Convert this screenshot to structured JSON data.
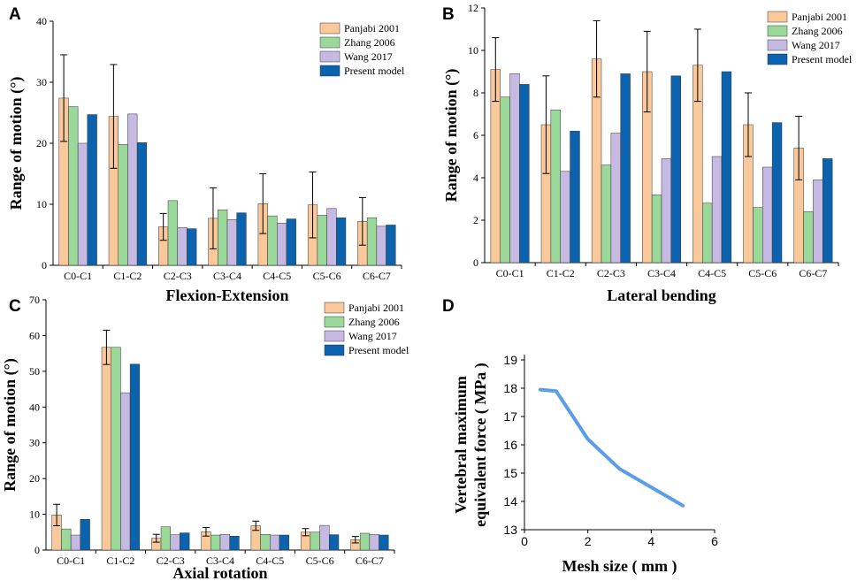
{
  "colors": {
    "panjabi": "#f9c89b",
    "zhang": "#9ad99a",
    "wang": "#c6b9e2",
    "present": "#0c63ad",
    "line": "#5b9ee8"
  },
  "chart_data": [
    {
      "panel": "A",
      "type": "bar",
      "xlabel": "Flexion-Extension",
      "ylabel": "Range of motion (°)",
      "ylim": [
        0,
        40
      ],
      "yticks": [
        0,
        10,
        20,
        30,
        40
      ],
      "categories": [
        "C0-C1",
        "C1-C2",
        "C2-C3",
        "C3-C4",
        "C4-C5",
        "C5-C6",
        "C6-C7"
      ],
      "legend_position": "top-right",
      "series": [
        {
          "name": "Panjabi 2001",
          "color_key": "panjabi",
          "values": [
            27.4,
            24.4,
            6.3,
            7.7,
            10.1,
            9.9,
            7.2
          ],
          "err": [
            7.1,
            8.5,
            2.2,
            5.0,
            4.9,
            5.4,
            3.9
          ]
        },
        {
          "name": "Zhang 2006",
          "color_key": "zhang",
          "values": [
            26.0,
            19.8,
            10.6,
            9.1,
            8.1,
            8.2,
            7.8
          ]
        },
        {
          "name": "Wang 2017",
          "color_key": "wang",
          "values": [
            20.0,
            24.8,
            6.2,
            7.5,
            6.9,
            9.3,
            6.4
          ]
        },
        {
          "name": "Present model",
          "color_key": "present",
          "values": [
            24.7,
            20.1,
            6.0,
            8.6,
            7.6,
            7.8,
            6.6
          ]
        }
      ]
    },
    {
      "panel": "B",
      "type": "bar",
      "xlabel": "Lateral bending",
      "ylabel": "Range of motion (°)",
      "ylim": [
        0,
        12
      ],
      "yticks": [
        0,
        2,
        4,
        6,
        8,
        10,
        12
      ],
      "categories": [
        "C0-C1",
        "C1-C2",
        "C2-C3",
        "C3-C4",
        "C4-C5",
        "C5-C6",
        "C6-C7"
      ],
      "legend_position": "top-right",
      "series": [
        {
          "name": "Panjabi 2001",
          "color_key": "panjabi",
          "values": [
            9.1,
            6.5,
            9.6,
            9.0,
            9.3,
            6.5,
            5.4
          ],
          "err": [
            1.5,
            2.3,
            1.8,
            1.9,
            1.7,
            1.5,
            1.5
          ]
        },
        {
          "name": "Zhang 2006",
          "color_key": "zhang",
          "values": [
            7.8,
            7.2,
            4.6,
            3.2,
            2.8,
            2.6,
            2.4
          ]
        },
        {
          "name": "Wang 2017",
          "color_key": "wang",
          "values": [
            8.9,
            4.3,
            6.1,
            4.9,
            5.0,
            4.5,
            3.9
          ]
        },
        {
          "name": "Present model",
          "color_key": "present",
          "values": [
            8.4,
            6.2,
            8.9,
            8.8,
            9.0,
            6.6,
            4.9
          ]
        }
      ]
    },
    {
      "panel": "C",
      "type": "bar",
      "xlabel": "Axial rotation",
      "ylabel": "Range of motion (°)",
      "ylim": [
        0,
        70
      ],
      "yticks": [
        0,
        10,
        20,
        30,
        40,
        50,
        60,
        70
      ],
      "categories": [
        "C0-C1",
        "C1-C2",
        "C2-C3",
        "C3-C4",
        "C4-C5",
        "C5-C6",
        "C6-C7"
      ],
      "legend_position": "top-right",
      "series": [
        {
          "name": "Panjabi 2001",
          "color_key": "panjabi",
          "values": [
            9.8,
            56.7,
            3.3,
            5.1,
            6.8,
            5.0,
            2.9
          ],
          "err": [
            3.0,
            4.8,
            1.1,
            1.2,
            1.3,
            1.0,
            0.9
          ]
        },
        {
          "name": "Zhang 2006",
          "color_key": "zhang",
          "values": [
            5.9,
            56.7,
            6.5,
            4.2,
            4.4,
            5.0,
            4.7
          ]
        },
        {
          "name": "Wang 2017",
          "color_key": "wang",
          "values": [
            4.2,
            44.0,
            4.3,
            4.4,
            4.2,
            6.9,
            4.4
          ]
        },
        {
          "name": "Present model",
          "color_key": "present",
          "values": [
            8.6,
            52.0,
            4.8,
            3.9,
            4.2,
            4.3,
            4.2
          ]
        }
      ]
    },
    {
      "panel": "D",
      "type": "line",
      "xlabel": "Mesh size ( mm )",
      "ylabel_line1": "Vertebral maximum",
      "ylabel_line2": "equivalent force ( MPa )",
      "xlim": [
        0,
        6
      ],
      "ylim": [
        13,
        19
      ],
      "xticks": [
        0,
        2,
        4,
        6
      ],
      "yticks": [
        13,
        14,
        15,
        16,
        17,
        18,
        19
      ],
      "x": [
        0.5,
        1.0,
        2.0,
        3.0,
        4.0,
        5.0
      ],
      "y": [
        17.95,
        17.9,
        16.2,
        15.15,
        14.5,
        13.85
      ]
    }
  ]
}
